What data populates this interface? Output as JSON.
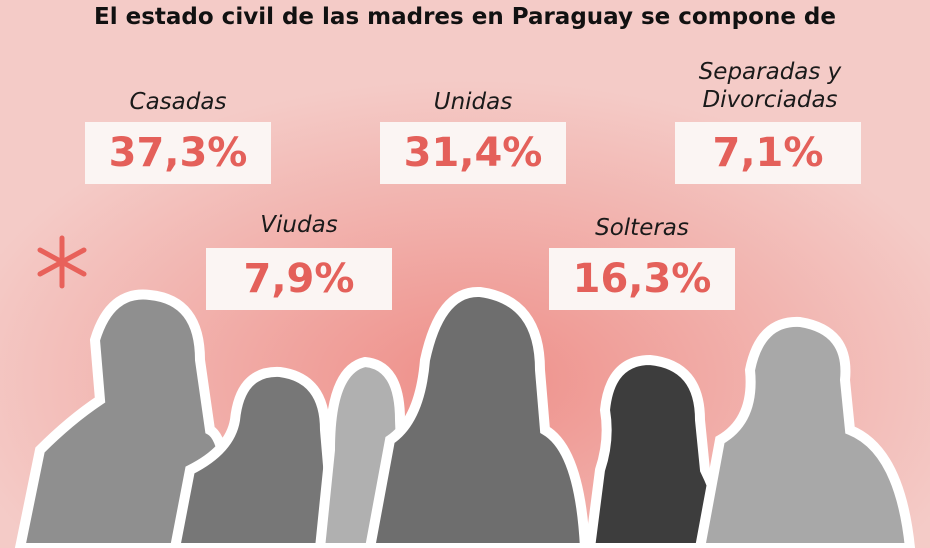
{
  "header": {
    "title": "El estado civil de las madres en Paraguay se compone de"
  },
  "stats": [
    {
      "label": "Casadas",
      "value": "37,3%"
    },
    {
      "label": "Unidas",
      "value": "31,4%"
    },
    {
      "label": "Separadas y Divorciadas",
      "value": "7,1%"
    },
    {
      "label": "Viudas",
      "value": "7,9%"
    },
    {
      "label": "Solteras",
      "value": "16,3%"
    }
  ]
}
